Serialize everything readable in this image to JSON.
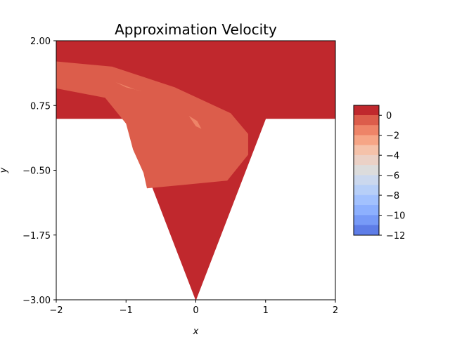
{
  "chart_data": {
    "type": "contourf",
    "title": "Approximation Velocity",
    "xlabel": "x",
    "ylabel": "y",
    "xlim": [
      -2,
      2
    ],
    "ylim": [
      -3,
      2
    ],
    "x_ticks": [
      -2,
      -1,
      0,
      1,
      2
    ],
    "x_tick_labels": [
      "−2",
      "−1",
      "0",
      "1",
      "2"
    ],
    "y_ticks": [
      2.0,
      0.75,
      -0.5,
      -1.75,
      -3.0
    ],
    "y_tick_labels": [
      "2.00",
      "0.75",
      "−0.50",
      "−1.75",
      "−3.00"
    ],
    "colormap": "coolwarm",
    "colorbar": {
      "range": [
        -12,
        1
      ],
      "ticks": [
        0,
        -2,
        -4,
        -6,
        -8,
        -10,
        -12
      ],
      "tick_labels": [
        "0",
        "−2",
        "−4",
        "−6",
        "−8",
        "−10",
        "−12"
      ],
      "levels": [
        {
          "min": 0,
          "max": 1,
          "color": "#c0282d"
        },
        {
          "min": -1,
          "max": 0,
          "color": "#dc5d4b"
        },
        {
          "min": -2,
          "max": -1,
          "color": "#ee8468"
        },
        {
          "min": -3,
          "max": -2,
          "color": "#f6a586"
        },
        {
          "min": -4,
          "max": -3,
          "color": "#f5c2aa"
        },
        {
          "min": -5,
          "max": -4,
          "color": "#ebd1c6"
        },
        {
          "min": -6,
          "max": -5,
          "color": "#dcdcdc"
        },
        {
          "min": -7,
          "max": -6,
          "color": "#cbd8ee"
        },
        {
          "min": -8,
          "max": -7,
          "color": "#b7cff8"
        },
        {
          "min": -9,
          "max": -8,
          "color": "#a2c1fe"
        },
        {
          "min": -10,
          "max": -9,
          "color": "#8db0fe"
        },
        {
          "min": -11,
          "max": -10,
          "color": "#779af7"
        },
        {
          "min": -12,
          "max": -11,
          "color": "#5e7de7"
        },
        {
          "min": -13,
          "max": -12,
          "color": "#4a62d8"
        }
      ]
    },
    "domain_outline": [
      [
        -2,
        2
      ],
      [
        2,
        2
      ],
      [
        2,
        0.5
      ],
      [
        1,
        0.5
      ],
      [
        0,
        -3
      ],
      [
        -1,
        0.5
      ],
      [
        -2,
        0.5
      ]
    ],
    "regions": [
      {
        "level": "-1..0",
        "color": "#dc5d4b",
        "outline": [
          [
            -2,
            1.6
          ],
          [
            -1.2,
            1.5
          ],
          [
            -0.3,
            1.1
          ],
          [
            0.5,
            0.6
          ],
          [
            0.75,
            0.2
          ],
          [
            0.75,
            -0.2
          ],
          [
            0.45,
            -0.7
          ],
          [
            -0.7,
            -0.85
          ],
          [
            -0.75,
            -0.55
          ],
          [
            -0.9,
            -0.1
          ],
          [
            -1.0,
            0.4
          ],
          [
            -1.3,
            0.9
          ],
          [
            -2,
            1.08
          ]
        ]
      },
      {
        "level": "-2..-1",
        "color": "#ee8468",
        "outline": [
          [
            -1.15,
            1.2
          ],
          [
            -0.85,
            1.05
          ],
          [
            -0.75,
            1.02
          ],
          [
            -1.0,
            1.1
          ]
        ]
      },
      {
        "level": "-2..-1",
        "color": "#ee8468",
        "outline": [
          [
            -0.1,
            0.55
          ],
          [
            0.0,
            0.35
          ],
          [
            0.08,
            0.3
          ],
          [
            0.02,
            0.45
          ]
        ]
      }
    ]
  }
}
